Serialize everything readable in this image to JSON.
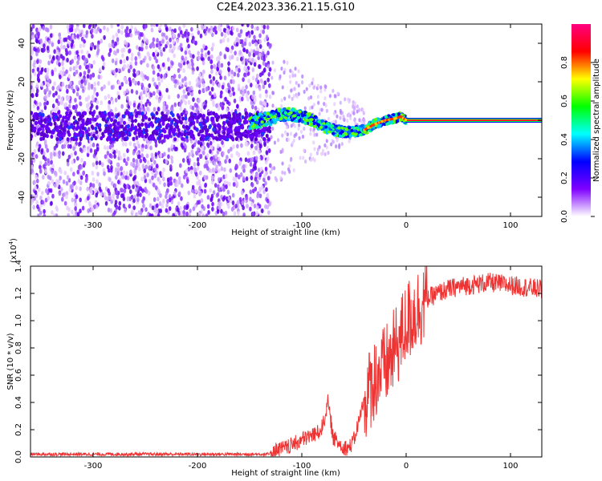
{
  "page": {
    "title": "C2E4.2023.336.21.15.G10"
  },
  "chart_data": [
    {
      "type": "heatmap",
      "title": "C2E4.2023.336.21.15.G10",
      "xlabel": "Height of straight line (km)",
      "ylabel": "Frequency (Hz)",
      "xlim": [
        -360,
        130
      ],
      "ylim": [
        -50,
        50
      ],
      "xticks": [
        -300,
        -200,
        -100,
        0,
        100
      ],
      "yticks": [
        -40,
        -20,
        0,
        20,
        40
      ],
      "colorbar": {
        "label": "Normalized spectral amplitude",
        "range": [
          0.0,
          1.0
        ],
        "ticks": [
          "0.0",
          "0.2",
          "0.4",
          "0.6",
          "0.8"
        ],
        "tick_values": [
          0.0,
          0.2,
          0.4,
          0.6,
          0.8
        ],
        "colors": [
          "#ffffff",
          "#7f00ff",
          "#0000ff",
          "#00ffff",
          "#00ff00",
          "#ffff00",
          "#ff0000",
          "#ff0080"
        ]
      },
      "signal_track": {
        "height_km": [
          -150,
          -130,
          -120,
          -110,
          -100,
          -90,
          -80,
          -75,
          -70,
          -60,
          -50,
          -40,
          -30,
          -20,
          -10,
          -5,
          0,
          50,
          130
        ],
        "freq_hz": [
          -1,
          1,
          3,
          3,
          2,
          0,
          -3,
          -4,
          -5,
          -6,
          -6,
          -5,
          -2,
          0,
          1,
          2,
          0,
          0,
          0
        ]
      },
      "noise_region": {
        "x_from": -360,
        "x_to": -130,
        "freq_from": -50,
        "freq_to": 50
      },
      "grid": false
    },
    {
      "type": "line",
      "xlabel": "Height of straight line (km)",
      "ylabel": "SNR (10 * v/v)",
      "y_multiplier": "(x10",
      "y_multiplier_exp": "4",
      "y_multiplier_close": ")",
      "xlim": [
        -360,
        130
      ],
      "ylim": [
        0.0,
        1.4
      ],
      "xticks": [
        -300,
        -200,
        -100,
        0,
        100
      ],
      "yticks": [
        "0.0",
        "0.2",
        "0.4",
        "0.6",
        "0.8",
        "1.0",
        "1.2",
        "1.4"
      ],
      "ytick_values": [
        0.0,
        0.2,
        0.4,
        0.6,
        0.8,
        1.0,
        1.2,
        1.4
      ],
      "color": "#ee3333",
      "series": [
        {
          "x": [
            -360,
            -300,
            -200,
            -130,
            -115,
            -105,
            -95,
            -85,
            -80,
            -75,
            -70,
            -65,
            -60,
            -55,
            -50,
            -45,
            -40,
            -35,
            -30,
            -25,
            -20,
            -15,
            -10,
            -5,
            0,
            10,
            20,
            30,
            40,
            50,
            60,
            70,
            80,
            90,
            100,
            110,
            130
          ],
          "y": [
            0.02,
            0.02,
            0.02,
            0.02,
            0.04,
            0.08,
            0.12,
            0.15,
            0.2,
            0.38,
            0.12,
            0.08,
            0.05,
            0.04,
            0.1,
            0.25,
            0.4,
            0.5,
            0.58,
            0.62,
            0.66,
            0.72,
            0.8,
            0.88,
            0.98,
            1.08,
            1.16,
            1.2,
            1.23,
            1.25,
            1.26,
            1.27,
            1.28,
            1.27,
            1.26,
            1.25,
            1.23
          ]
        }
      ],
      "grid": false
    }
  ]
}
